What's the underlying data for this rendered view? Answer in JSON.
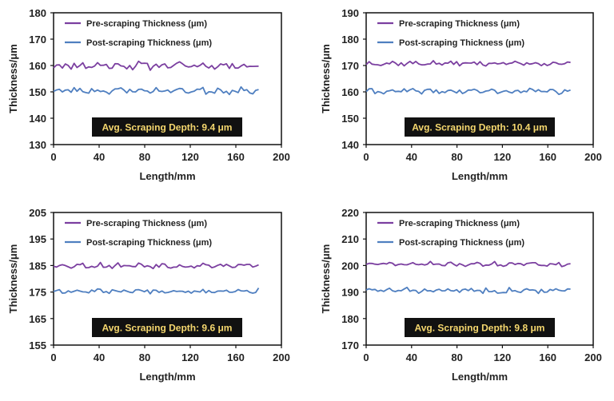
{
  "chart_data": [
    {
      "type": "line",
      "xlabel": "Length/mm",
      "ylabel": "Thickness/μm",
      "xlim": [
        0,
        200
      ],
      "xticks": [
        0,
        40,
        80,
        120,
        160,
        200
      ],
      "ylim": [
        130,
        180
      ],
      "yticks": [
        130,
        140,
        150,
        160,
        170,
        180
      ],
      "grid": false,
      "legend_position": "top-left",
      "annotation": "Avg. Scraping Depth: 9.4 μm",
      "series": [
        {
          "name": "Pre-scraping Thickness (μm)",
          "color": "#7b3fa0",
          "mean": 160.0,
          "amplitude": 1.5,
          "seed": 11
        },
        {
          "name": "Post-scraping Thickness (μm)",
          "color": "#4f7fc0",
          "mean": 150.5,
          "amplitude": 1.3,
          "seed": 23
        }
      ]
    },
    {
      "type": "line",
      "xlabel": "Length/mm",
      "ylabel": "Thickness/μm",
      "xlim": [
        0,
        200
      ],
      "xticks": [
        0,
        40,
        80,
        120,
        160,
        200
      ],
      "ylim": [
        140,
        190
      ],
      "yticks": [
        140,
        150,
        160,
        170,
        180,
        190
      ],
      "grid": false,
      "legend_position": "top-left",
      "annotation": "Avg. Scraping Depth: 10.4 μm",
      "series": [
        {
          "name": "Pre-scraping Thickness (μm)",
          "color": "#7b3fa0",
          "mean": 170.8,
          "amplitude": 0.9,
          "seed": 37
        },
        {
          "name": "Post-scraping Thickness (μm)",
          "color": "#4f7fc0",
          "mean": 160.2,
          "amplitude": 1.1,
          "seed": 41
        }
      ]
    },
    {
      "type": "line",
      "xlabel": "Length/mm",
      "ylabel": "Thickness/μm",
      "xlim": [
        0,
        200
      ],
      "xticks": [
        0,
        40,
        80,
        120,
        160,
        200
      ],
      "ylim": [
        155,
        205
      ],
      "yticks": [
        155,
        165,
        175,
        185,
        195,
        205
      ],
      "grid": false,
      "legend_position": "top-left",
      "annotation": "Avg. Scraping Depth: 9.6 μm",
      "series": [
        {
          "name": "Pre-scraping Thickness (μm)",
          "color": "#7b3fa0",
          "mean": 185.0,
          "amplitude": 1.1,
          "seed": 53
        },
        {
          "name": "Post-scraping Thickness (μm)",
          "color": "#4f7fc0",
          "mean": 175.4,
          "amplitude": 0.9,
          "seed": 67
        }
      ]
    },
    {
      "type": "line",
      "xlabel": "Length/mm",
      "ylabel": "Thickness/μm",
      "xlim": [
        0,
        200
      ],
      "xticks": [
        0,
        40,
        80,
        120,
        160,
        200
      ],
      "ylim": [
        170,
        220
      ],
      "yticks": [
        170,
        180,
        190,
        200,
        210,
        220
      ],
      "grid": false,
      "legend_position": "top-left",
      "annotation": "Avg. Scraping Depth: 9.8 μm",
      "series": [
        {
          "name": "Pre-scraping Thickness (μm)",
          "color": "#7b3fa0",
          "mean": 200.5,
          "amplitude": 0.9,
          "seed": 71
        },
        {
          "name": "Post-scraping Thickness (μm)",
          "color": "#4f7fc0",
          "mean": 190.6,
          "amplitude": 1.0,
          "seed": 83
        }
      ]
    }
  ]
}
